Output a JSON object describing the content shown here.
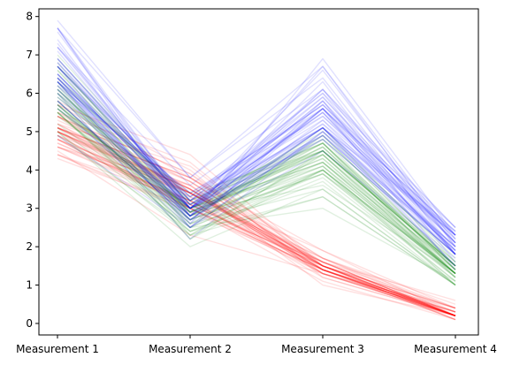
{
  "chart_data": {
    "type": "line",
    "subtype": "parallel-coordinates",
    "title": "",
    "xlabel": "",
    "ylabel": "",
    "categories": [
      "Measurement 1",
      "Measurement 2",
      "Measurement 3",
      "Measurement 4"
    ],
    "ylim": [
      -0.3,
      8.2
    ],
    "yticks": [
      "0",
      "1",
      "2",
      "3",
      "4",
      "5",
      "6",
      "7",
      "8"
    ],
    "grid": false,
    "legend": "none",
    "line_opacity": 0.12,
    "groups": [
      {
        "color": "#ff0000",
        "values": [
          [
            5.1,
            3.5,
            1.4,
            0.2
          ],
          [
            4.9,
            3.0,
            1.4,
            0.2
          ],
          [
            4.7,
            3.2,
            1.3,
            0.2
          ],
          [
            4.6,
            3.1,
            1.5,
            0.2
          ],
          [
            5.0,
            3.6,
            1.4,
            0.2
          ],
          [
            5.4,
            3.9,
            1.7,
            0.4
          ],
          [
            4.6,
            3.4,
            1.4,
            0.3
          ],
          [
            5.0,
            3.4,
            1.5,
            0.2
          ],
          [
            4.4,
            2.9,
            1.4,
            0.2
          ],
          [
            4.9,
            3.1,
            1.5,
            0.1
          ],
          [
            5.4,
            3.7,
            1.5,
            0.2
          ],
          [
            4.8,
            3.4,
            1.6,
            0.2
          ],
          [
            4.8,
            3.0,
            1.4,
            0.1
          ],
          [
            4.3,
            3.0,
            1.1,
            0.1
          ],
          [
            5.8,
            4.0,
            1.2,
            0.2
          ],
          [
            5.7,
            4.4,
            1.5,
            0.4
          ],
          [
            5.4,
            3.9,
            1.3,
            0.4
          ],
          [
            5.1,
            3.5,
            1.4,
            0.3
          ],
          [
            5.7,
            3.8,
            1.7,
            0.3
          ],
          [
            5.1,
            3.8,
            1.5,
            0.3
          ],
          [
            5.4,
            3.4,
            1.7,
            0.2
          ],
          [
            5.1,
            3.7,
            1.5,
            0.4
          ],
          [
            4.6,
            3.6,
            1.0,
            0.2
          ],
          [
            5.1,
            3.3,
            1.7,
            0.5
          ],
          [
            4.8,
            3.4,
            1.9,
            0.2
          ],
          [
            5.0,
            3.0,
            1.6,
            0.2
          ],
          [
            5.0,
            3.4,
            1.6,
            0.4
          ],
          [
            5.2,
            3.5,
            1.5,
            0.2
          ],
          [
            5.2,
            3.4,
            1.4,
            0.2
          ],
          [
            4.7,
            3.2,
            1.6,
            0.2
          ],
          [
            4.8,
            3.1,
            1.6,
            0.2
          ],
          [
            5.4,
            3.4,
            1.5,
            0.4
          ],
          [
            5.2,
            4.1,
            1.5,
            0.1
          ],
          [
            5.5,
            4.2,
            1.4,
            0.2
          ],
          [
            4.9,
            3.1,
            1.5,
            0.2
          ],
          [
            5.0,
            3.2,
            1.2,
            0.2
          ],
          [
            5.5,
            3.5,
            1.3,
            0.2
          ],
          [
            4.9,
            3.6,
            1.4,
            0.1
          ],
          [
            4.4,
            3.0,
            1.3,
            0.2
          ],
          [
            5.1,
            3.4,
            1.5,
            0.2
          ],
          [
            5.0,
            3.5,
            1.3,
            0.3
          ],
          [
            4.5,
            2.3,
            1.3,
            0.3
          ],
          [
            4.4,
            3.2,
            1.3,
            0.2
          ],
          [
            5.0,
            3.5,
            1.6,
            0.6
          ],
          [
            5.1,
            3.8,
            1.9,
            0.4
          ],
          [
            4.8,
            3.0,
            1.4,
            0.3
          ],
          [
            5.1,
            3.8,
            1.6,
            0.2
          ],
          [
            4.6,
            3.2,
            1.4,
            0.2
          ],
          [
            5.3,
            3.7,
            1.5,
            0.2
          ],
          [
            5.0,
            3.3,
            1.4,
            0.2
          ]
        ]
      },
      {
        "color": "#008000",
        "values": [
          [
            7.0,
            3.2,
            4.7,
            1.4
          ],
          [
            6.4,
            3.2,
            4.5,
            1.5
          ],
          [
            6.9,
            3.1,
            4.9,
            1.5
          ],
          [
            5.5,
            2.3,
            4.0,
            1.3
          ],
          [
            6.5,
            2.8,
            4.6,
            1.5
          ],
          [
            5.7,
            2.8,
            4.5,
            1.3
          ],
          [
            6.3,
            3.3,
            4.7,
            1.6
          ],
          [
            4.9,
            2.4,
            3.3,
            1.0
          ],
          [
            6.6,
            2.9,
            4.6,
            1.3
          ],
          [
            5.2,
            2.7,
            3.9,
            1.4
          ],
          [
            5.0,
            2.0,
            3.5,
            1.0
          ],
          [
            5.9,
            3.0,
            4.2,
            1.5
          ],
          [
            6.0,
            2.2,
            4.0,
            1.0
          ],
          [
            6.1,
            2.9,
            4.7,
            1.4
          ],
          [
            5.6,
            2.9,
            3.6,
            1.3
          ],
          [
            6.7,
            3.1,
            4.4,
            1.4
          ],
          [
            5.6,
            3.0,
            4.5,
            1.5
          ],
          [
            5.8,
            2.7,
            4.1,
            1.0
          ],
          [
            6.2,
            2.2,
            4.5,
            1.5
          ],
          [
            5.6,
            2.5,
            3.9,
            1.1
          ],
          [
            5.9,
            3.2,
            4.8,
            1.8
          ],
          [
            6.1,
            2.8,
            4.0,
            1.3
          ],
          [
            6.3,
            2.5,
            4.9,
            1.5
          ],
          [
            6.1,
            2.8,
            4.7,
            1.2
          ],
          [
            6.4,
            2.9,
            4.3,
            1.3
          ],
          [
            6.6,
            3.0,
            4.4,
            1.4
          ],
          [
            6.8,
            2.8,
            4.8,
            1.4
          ],
          [
            6.7,
            3.0,
            5.0,
            1.7
          ],
          [
            6.0,
            2.9,
            4.5,
            1.5
          ],
          [
            5.7,
            2.6,
            3.5,
            1.0
          ],
          [
            5.5,
            2.4,
            3.8,
            1.1
          ],
          [
            5.5,
            2.4,
            3.7,
            1.0
          ],
          [
            5.8,
            2.7,
            3.9,
            1.2
          ],
          [
            6.0,
            2.7,
            5.1,
            1.6
          ],
          [
            5.4,
            3.0,
            4.5,
            1.5
          ],
          [
            6.0,
            3.4,
            4.5,
            1.6
          ],
          [
            6.7,
            3.1,
            4.7,
            1.5
          ],
          [
            6.3,
            2.3,
            4.4,
            1.3
          ],
          [
            5.6,
            3.0,
            4.1,
            1.3
          ],
          [
            5.5,
            2.5,
            4.0,
            1.3
          ],
          [
            5.5,
            2.6,
            4.4,
            1.2
          ],
          [
            6.1,
            3.0,
            4.6,
            1.4
          ],
          [
            5.8,
            2.6,
            4.0,
            1.2
          ],
          [
            5.0,
            2.3,
            3.3,
            1.0
          ],
          [
            5.6,
            2.7,
            4.2,
            1.3
          ],
          [
            5.7,
            3.0,
            4.2,
            1.2
          ],
          [
            5.7,
            2.9,
            4.2,
            1.3
          ],
          [
            6.2,
            2.9,
            4.3,
            1.3
          ],
          [
            5.1,
            2.5,
            3.0,
            1.1
          ],
          [
            5.7,
            2.8,
            4.1,
            1.3
          ]
        ]
      },
      {
        "color": "#0000ff",
        "values": [
          [
            6.3,
            3.3,
            6.0,
            2.5
          ],
          [
            5.8,
            2.7,
            5.1,
            1.9
          ],
          [
            7.1,
            3.0,
            5.9,
            2.1
          ],
          [
            6.3,
            2.9,
            5.6,
            1.8
          ],
          [
            6.5,
            3.0,
            5.8,
            2.2
          ],
          [
            7.6,
            3.0,
            6.6,
            2.1
          ],
          [
            4.9,
            2.5,
            4.5,
            1.7
          ],
          [
            7.3,
            2.9,
            6.3,
            1.8
          ],
          [
            6.7,
            2.5,
            5.8,
            1.8
          ],
          [
            7.2,
            3.6,
            6.1,
            2.5
          ],
          [
            6.5,
            3.2,
            5.1,
            2.0
          ],
          [
            6.4,
            2.7,
            5.3,
            1.9
          ],
          [
            6.8,
            3.0,
            5.5,
            2.1
          ],
          [
            5.7,
            2.5,
            5.0,
            2.0
          ],
          [
            5.8,
            2.8,
            5.1,
            2.4
          ],
          [
            6.4,
            3.2,
            5.3,
            2.3
          ],
          [
            6.5,
            3.0,
            5.5,
            1.8
          ],
          [
            7.7,
            3.8,
            6.7,
            2.2
          ],
          [
            7.7,
            2.6,
            6.9,
            2.3
          ],
          [
            6.0,
            2.2,
            5.0,
            1.5
          ],
          [
            6.9,
            3.2,
            5.7,
            2.3
          ],
          [
            5.6,
            2.8,
            4.9,
            2.0
          ],
          [
            7.7,
            2.8,
            6.7,
            2.0
          ],
          [
            6.3,
            2.7,
            4.9,
            1.8
          ],
          [
            6.7,
            3.3,
            5.7,
            2.1
          ],
          [
            7.2,
            3.2,
            6.0,
            1.8
          ],
          [
            6.2,
            2.8,
            4.8,
            1.8
          ],
          [
            6.1,
            3.0,
            4.9,
            1.8
          ],
          [
            6.4,
            2.8,
            5.6,
            2.1
          ],
          [
            7.2,
            3.0,
            5.8,
            1.6
          ],
          [
            7.4,
            2.8,
            6.1,
            1.9
          ],
          [
            7.9,
            3.8,
            6.4,
            2.0
          ],
          [
            6.4,
            2.8,
            5.6,
            2.2
          ],
          [
            6.3,
            2.8,
            5.1,
            1.5
          ],
          [
            6.1,
            2.6,
            5.6,
            1.4
          ],
          [
            7.7,
            3.0,
            6.1,
            2.3
          ],
          [
            6.3,
            3.4,
            5.6,
            2.4
          ],
          [
            6.4,
            3.1,
            5.5,
            1.8
          ],
          [
            6.0,
            3.0,
            4.8,
            1.8
          ],
          [
            6.9,
            3.1,
            5.4,
            2.1
          ],
          [
            6.7,
            3.1,
            5.6,
            2.4
          ],
          [
            6.9,
            3.1,
            5.1,
            2.3
          ],
          [
            5.8,
            2.7,
            5.1,
            1.9
          ],
          [
            6.8,
            3.2,
            5.9,
            2.3
          ],
          [
            6.7,
            3.3,
            5.7,
            2.5
          ],
          [
            6.7,
            3.0,
            5.2,
            2.3
          ],
          [
            6.3,
            2.5,
            5.0,
            1.9
          ],
          [
            6.5,
            3.0,
            5.2,
            2.0
          ],
          [
            6.2,
            3.4,
            5.4,
            2.3
          ],
          [
            5.9,
            3.0,
            5.1,
            1.8
          ]
        ]
      }
    ]
  }
}
